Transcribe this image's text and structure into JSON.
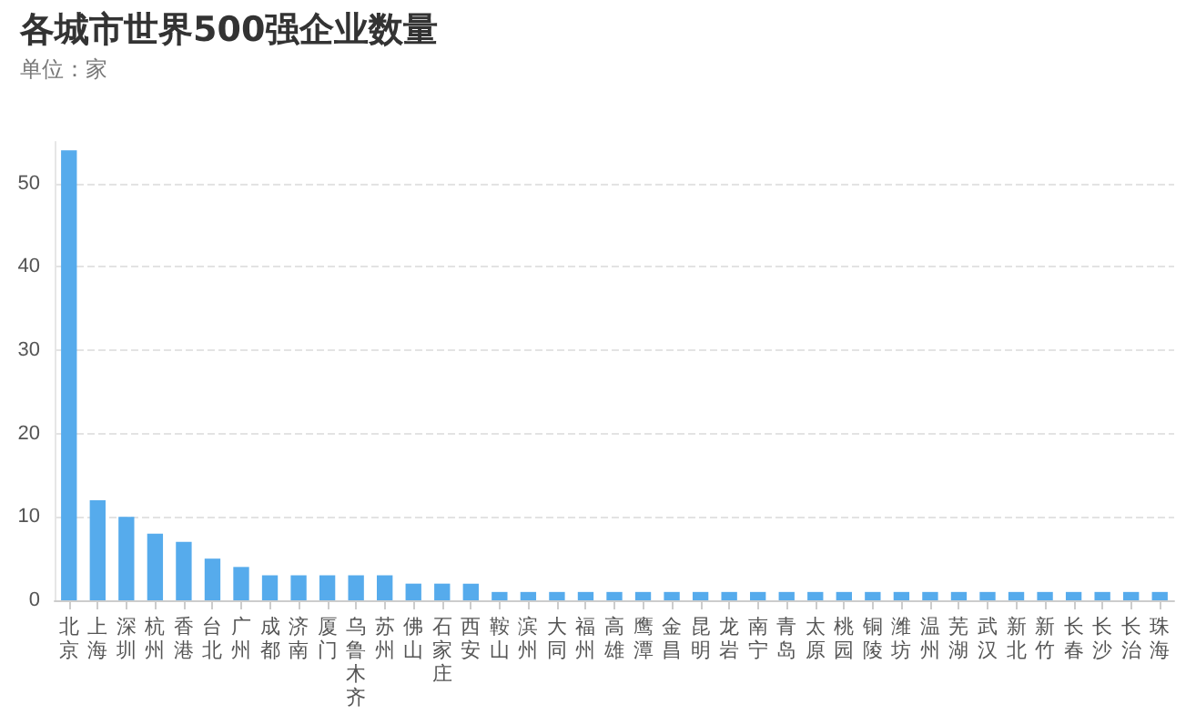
{
  "chart_data": {
    "type": "bar",
    "title": "各城市世界500强企业数量",
    "subtitle": "单位：家",
    "categories": [
      "北京",
      "上海",
      "深圳",
      "杭州",
      "香港",
      "台北",
      "广州",
      "成都",
      "济南",
      "厦门",
      "乌鲁木齐",
      "苏州",
      "佛山",
      "石家庄",
      "西安",
      "鞍山",
      "滨州",
      "大同",
      "福州",
      "高雄",
      "鹰潭",
      "金昌",
      "昆明",
      "龙岩",
      "南宁",
      "青岛",
      "太原",
      "桃园",
      "铜陵",
      "潍坊",
      "温州",
      "芜湖",
      "武汉",
      "新北",
      "新竹",
      "长春",
      "长沙",
      "长治",
      "珠海"
    ],
    "values": [
      54,
      12,
      10,
      8,
      7,
      5,
      4,
      3,
      3,
      3,
      3,
      3,
      2,
      2,
      2,
      1,
      1,
      1,
      1,
      1,
      1,
      1,
      1,
      1,
      1,
      1,
      1,
      1,
      1,
      1,
      1,
      1,
      1,
      1,
      1,
      1,
      1,
      1,
      1
    ],
    "color": "#56abec",
    "ylim": [
      0,
      55
    ],
    "yticks": [
      0,
      10,
      20,
      30,
      40,
      50
    ],
    "grid": "y"
  }
}
